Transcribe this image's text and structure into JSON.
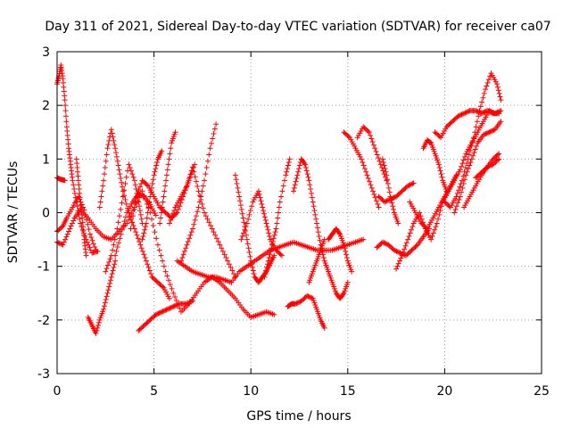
{
  "chart_data": {
    "type": "scatter",
    "title": "Day 311 of 2021, Sidereal Day-to-day VTEC variation (SDTVAR) for receiver ca07",
    "xlabel": "GPS time / hours",
    "ylabel": "SDTVAR / TECUs",
    "xlim": [
      0,
      25
    ],
    "ylim": [
      -3,
      3
    ],
    "xticks": [
      "0",
      "5",
      "10",
      "15",
      "20",
      "25"
    ],
    "yticks": [
      "-3",
      "-2",
      "-1",
      "0",
      "1",
      "2",
      "3"
    ],
    "grid": true,
    "marker": "plus",
    "color": "#ff0000",
    "series": [
      {
        "x": [
          0.0,
          0.1,
          0.2,
          0.3,
          0.4,
          0.5,
          0.6,
          0.7,
          0.8,
          1.0,
          1.2,
          1.5,
          1.8,
          2.1
        ],
        "values": [
          2.4,
          2.55,
          2.75,
          2.5,
          2.1,
          1.6,
          1.2,
          0.9,
          0.6,
          0.2,
          -0.2,
          -0.5,
          -0.75,
          -0.72
        ]
      },
      {
        "x": [
          0.0,
          0.3,
          0.6,
          0.9,
          1.2,
          1.6,
          2.0,
          2.4,
          2.8,
          3.2,
          3.6,
          4.0,
          4.4,
          4.8,
          5.2,
          5.6,
          6.0,
          6.4,
          6.8
        ],
        "values": [
          -0.55,
          -0.6,
          -0.35,
          -0.1,
          0.05,
          -0.1,
          -0.3,
          -0.45,
          -0.5,
          -0.35,
          -0.2,
          0.1,
          0.4,
          0.0,
          -0.6,
          -1.1,
          -1.5,
          -1.85,
          -1.7
        ]
      },
      {
        "x": [
          0.0,
          0.2,
          0.4
        ],
        "values": [
          0.65,
          0.62,
          0.6
        ]
      },
      {
        "x": [
          0.0,
          0.3,
          0.5,
          0.8,
          1.1,
          1.4,
          1.7,
          2.0
        ],
        "values": [
          -0.35,
          -0.25,
          -0.1,
          0.1,
          0.3,
          0.05,
          -0.4,
          -0.7
        ]
      },
      {
        "x": [
          1.0,
          1.1,
          1.2,
          1.3,
          1.4,
          1.5
        ],
        "values": [
          1.0,
          0.6,
          0.2,
          -0.1,
          -0.5,
          -0.8
        ]
      },
      {
        "x": [
          1.6,
          1.8,
          2.0,
          2.2,
          2.4,
          2.6,
          2.8,
          3.0
        ],
        "values": [
          -1.95,
          -2.1,
          -2.25,
          -2.0,
          -1.8,
          -1.5,
          -1.2,
          -0.9
        ]
      },
      {
        "x": [
          3.0,
          3.3,
          3.6,
          3.9,
          4.2,
          4.5,
          4.8,
          5.1
        ],
        "values": [
          -0.8,
          -0.4,
          0.0,
          0.2,
          0.35,
          0.3,
          0.15,
          -0.05
        ]
      },
      {
        "x": [
          2.2,
          2.4,
          2.6,
          2.8,
          3.0,
          3.2,
          3.4,
          3.7,
          4.0,
          4.3,
          4.6,
          4.9,
          5.2,
          5.5,
          5.8
        ],
        "values": [
          0.1,
          0.6,
          1.2,
          1.55,
          1.2,
          0.8,
          0.4,
          0.0,
          -0.3,
          -0.6,
          -0.9,
          -1.2,
          -1.3,
          -1.4,
          -1.6
        ]
      },
      {
        "x": [
          2.5,
          2.8,
          3.1,
          3.4,
          3.7,
          4.0,
          4.2,
          4.4
        ],
        "values": [
          -1.1,
          -0.8,
          -0.3,
          0.3,
          0.9,
          0.6,
          0.2,
          -0.2
        ]
      },
      {
        "x": [
          3.8,
          4.1,
          4.4,
          4.7,
          5.0,
          5.3,
          5.6,
          5.9,
          6.2,
          6.5,
          6.8,
          7.1
        ],
        "values": [
          -0.3,
          0.3,
          0.6,
          0.5,
          0.3,
          0.1,
          0.0,
          -0.1,
          0.0,
          0.3,
          0.6,
          0.9
        ]
      },
      {
        "x": [
          4.2,
          4.5,
          4.8,
          5.1,
          5.4,
          5.7,
          6.0,
          6.3,
          6.6,
          7.0
        ],
        "values": [
          -2.2,
          -2.1,
          -2.0,
          -1.9,
          -1.85,
          -1.8,
          -1.75,
          -1.7,
          -1.7,
          -1.65
        ]
      },
      {
        "x": [
          4.4,
          4.6,
          4.8,
          5.0,
          5.2,
          5.4
        ],
        "values": [
          -0.5,
          -0.2,
          0.3,
          0.7,
          1.0,
          1.15
        ]
      },
      {
        "x": [
          5.3,
          5.5,
          5.7,
          5.9,
          6.1
        ],
        "values": [
          -0.2,
          0.3,
          0.8,
          1.3,
          1.5
        ]
      },
      {
        "x": [
          5.8,
          6.1,
          6.4,
          6.7,
          7.0,
          7.3,
          7.6,
          8.0,
          8.4,
          8.8,
          9.2
        ],
        "values": [
          -0.2,
          0.1,
          0.3,
          0.5,
          0.85,
          0.4,
          0.0,
          -0.3,
          -0.6,
          -0.9,
          -1.2
        ]
      },
      {
        "x": [
          6.4,
          6.7,
          7.0,
          7.3,
          7.6,
          7.9,
          8.2
        ],
        "values": [
          -0.9,
          -0.6,
          -0.3,
          0.1,
          0.6,
          1.2,
          1.65
        ]
      },
      {
        "x": [
          6.2,
          6.6,
          7.0,
          7.4,
          7.8,
          8.2,
          8.6,
          9.0,
          9.4,
          9.8,
          10.2,
          10.6,
          11.0,
          11.4,
          11.8,
          12.2,
          12.6,
          13.0,
          13.4,
          13.8,
          14.2,
          14.6,
          15.0,
          15.4,
          15.8
        ],
        "values": [
          -0.9,
          -1.0,
          -1.1,
          -1.15,
          -1.2,
          -1.2,
          -1.25,
          -1.3,
          -1.1,
          -1.0,
          -0.9,
          -0.8,
          -0.7,
          -0.65,
          -0.6,
          -0.55,
          -0.6,
          -0.65,
          -0.7,
          -0.7,
          -0.7,
          -0.65,
          -0.6,
          -0.55,
          -0.5
        ]
      },
      {
        "x": [
          6.8,
          7.2,
          7.6,
          8.0,
          8.4,
          8.8,
          9.2,
          9.6,
          10.0,
          10.4,
          10.8,
          11.2
        ],
        "values": [
          -1.7,
          -1.5,
          -1.3,
          -1.2,
          -1.3,
          -1.45,
          -1.6,
          -1.8,
          -1.95,
          -1.9,
          -1.85,
          -1.9
        ]
      },
      {
        "x": [
          9.2,
          9.4,
          9.6,
          9.8,
          10.0,
          10.2,
          10.4,
          10.6,
          10.8,
          11.0,
          11.2
        ],
        "values": [
          0.7,
          0.3,
          -0.1,
          -0.5,
          -0.9,
          -1.2,
          -1.3,
          -1.2,
          -1.1,
          -0.95,
          -0.8
        ]
      },
      {
        "x": [
          9.5,
          9.8,
          10.1,
          10.4,
          10.6,
          10.8,
          11.0,
          11.3,
          11.6
        ],
        "values": [
          -0.5,
          -0.2,
          0.2,
          0.4,
          0.1,
          -0.2,
          -0.5,
          -0.7,
          -0.8
        ]
      },
      {
        "x": [
          10.7,
          10.9,
          11.1,
          11.3,
          11.5,
          11.8,
          12.0
        ],
        "values": [
          -1.2,
          -0.9,
          -0.6,
          -0.3,
          0.2,
          0.7,
          1.0
        ]
      },
      {
        "x": [
          11.9,
          12.1,
          12.3,
          12.6,
          12.9,
          13.2,
          13.4,
          13.6,
          13.8
        ],
        "values": [
          -1.75,
          -1.7,
          -1.7,
          -1.65,
          -1.55,
          -1.6,
          -1.8,
          -2.0,
          -2.15
        ]
      },
      {
        "x": [
          12.2,
          12.4,
          12.6,
          12.8,
          13.0,
          13.2,
          13.4,
          13.6,
          13.8,
          14.0,
          14.2,
          14.4,
          14.6,
          14.8,
          15.0
        ],
        "values": [
          0.4,
          0.7,
          1.0,
          0.9,
          0.6,
          0.2,
          -0.2,
          -0.6,
          -0.9,
          -1.1,
          -1.3,
          -1.5,
          -1.6,
          -1.5,
          -1.3
        ]
      },
      {
        "x": [
          13.0,
          13.2,
          13.4,
          13.6,
          13.8
        ],
        "values": [
          -1.3,
          -1.1,
          -0.9,
          -0.7,
          -0.5
        ]
      },
      {
        "x": [
          14.0,
          14.2,
          14.4,
          14.6,
          14.8,
          15.0,
          15.2
        ],
        "values": [
          -0.5,
          -0.4,
          -0.3,
          -0.4,
          -0.6,
          -0.9,
          -1.1
        ]
      },
      {
        "x": [
          14.8,
          15.1,
          15.4,
          15.7,
          16.0,
          16.3,
          16.6
        ],
        "values": [
          1.5,
          1.4,
          1.2,
          1.0,
          0.7,
          0.4,
          0.1
        ]
      },
      {
        "x": [
          15.5,
          15.8,
          16.1,
          16.4,
          16.7,
          17.0
        ],
        "values": [
          1.4,
          1.6,
          1.5,
          1.2,
          0.9,
          0.6
        ]
      },
      {
        "x": [
          16.6,
          16.9,
          17.2,
          17.5,
          17.8,
          18.1,
          18.4
        ],
        "values": [
          0.3,
          0.2,
          0.25,
          0.3,
          0.4,
          0.5,
          0.55
        ]
      },
      {
        "x": [
          16.8,
          17.0,
          17.2,
          17.4,
          17.6
        ],
        "values": [
          1.0,
          0.7,
          0.3,
          0.0,
          -0.2
        ]
      },
      {
        "x": [
          16.5,
          16.8,
          17.1,
          17.4,
          17.7,
          18.0,
          18.3,
          18.6,
          18.9,
          19.2
        ],
        "values": [
          -0.65,
          -0.55,
          -0.6,
          -0.7,
          -0.75,
          -0.8,
          -0.7,
          -0.6,
          -0.45,
          -0.3
        ]
      },
      {
        "x": [
          17.5,
          17.8,
          18.1,
          18.4,
          18.7,
          19.0,
          19.3,
          19.6,
          19.9,
          20.2,
          20.5,
          20.8,
          21.1,
          21.4,
          21.7,
          22.0,
          22.3,
          22.6,
          22.9
        ],
        "values": [
          -1.05,
          -0.8,
          -0.5,
          -0.2,
          0.0,
          -0.3,
          -0.5,
          -0.2,
          0.2,
          0.4,
          0.6,
          0.8,
          1.1,
          1.3,
          1.5,
          1.7,
          1.9,
          1.85,
          1.9
        ]
      },
      {
        "x": [
          18.2,
          18.5,
          18.8,
          19.1,
          19.4,
          19.7,
          20.0,
          20.3,
          20.6
        ],
        "values": [
          0.2,
          0.0,
          -0.2,
          -0.3,
          -0.1,
          0.1,
          0.3,
          0.5,
          0.7
        ]
      },
      {
        "x": [
          18.9,
          19.1,
          19.3,
          19.5,
          19.7,
          19.9,
          20.1
        ],
        "values": [
          1.2,
          1.35,
          1.3,
          1.1,
          0.9,
          0.6,
          0.4
        ]
      },
      {
        "x": [
          19.5,
          19.8,
          20.1,
          20.4,
          20.7,
          21.0,
          21.3,
          21.6,
          21.9,
          22.2,
          22.5,
          22.8
        ],
        "values": [
          1.5,
          1.4,
          1.6,
          1.7,
          1.8,
          1.85,
          1.9,
          1.9,
          1.85,
          1.9,
          1.85,
          1.85
        ]
      },
      {
        "x": [
          20.0,
          20.3,
          20.6,
          20.9,
          21.2,
          21.5,
          21.8,
          22.1,
          22.4,
          22.7,
          22.9
        ],
        "values": [
          0.2,
          0.1,
          0.3,
          0.6,
          1.0,
          1.4,
          1.9,
          2.3,
          2.6,
          2.4,
          2.1
        ]
      },
      {
        "x": [
          20.5,
          20.8,
          21.1,
          21.4,
          21.7,
          22.0,
          22.3,
          22.6,
          22.9
        ],
        "values": [
          0.0,
          0.3,
          0.7,
          1.0,
          1.3,
          1.45,
          1.5,
          1.55,
          1.7
        ]
      },
      {
        "x": [
          21.0,
          21.3,
          21.6,
          21.9,
          22.2,
          22.5,
          22.8
        ],
        "values": [
          0.1,
          0.3,
          0.5,
          0.7,
          0.85,
          1.0,
          1.1
        ]
      },
      {
        "x": [
          21.6,
          21.9,
          22.2,
          22.5,
          22.8
        ],
        "values": [
          0.65,
          0.75,
          0.85,
          0.9,
          1.0
        ]
      }
    ]
  }
}
